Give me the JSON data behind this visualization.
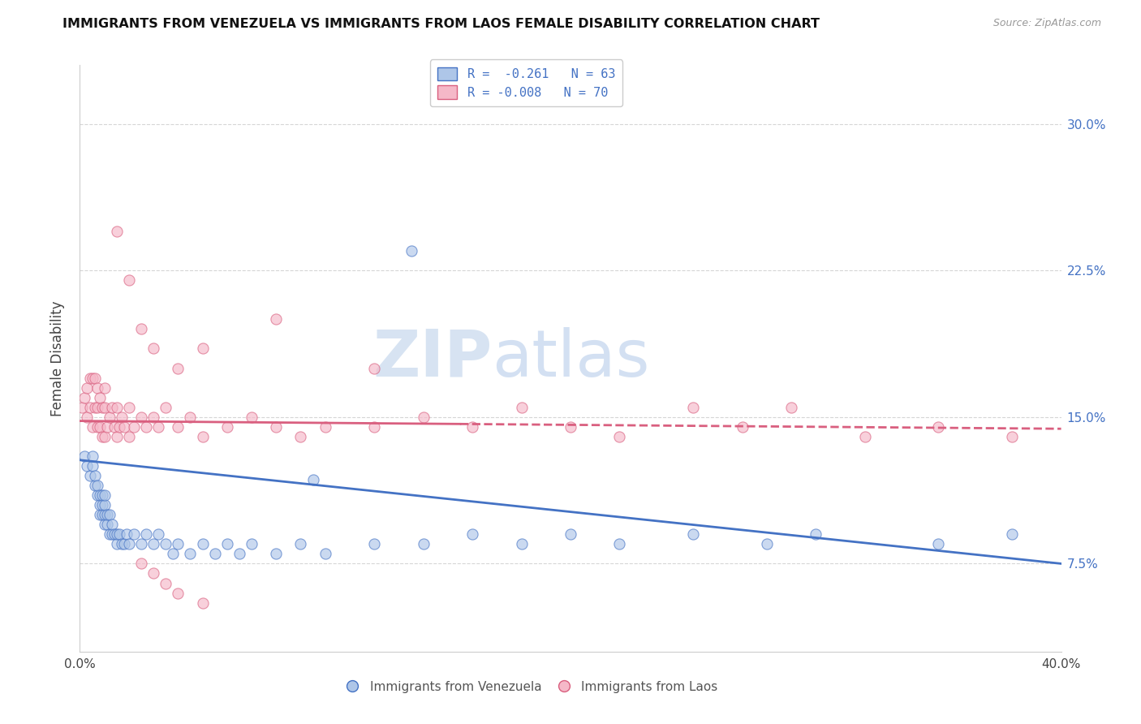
{
  "title": "IMMIGRANTS FROM VENEZUELA VS IMMIGRANTS FROM LAOS FEMALE DISABILITY CORRELATION CHART",
  "source": "Source: ZipAtlas.com",
  "ylabel": "Female Disability",
  "yticks": [
    "7.5%",
    "15.0%",
    "22.5%",
    "30.0%"
  ],
  "ytick_vals": [
    0.075,
    0.15,
    0.225,
    0.3
  ],
  "xlim": [
    0.0,
    0.4
  ],
  "ylim": [
    0.03,
    0.33
  ],
  "legend_r1": "R =  -0.261",
  "legend_n1": "N = 63",
  "legend_r2": "R = -0.008",
  "legend_n2": "N = 70",
  "watermark_zip": "ZIP",
  "watermark_atlas": "atlas",
  "color_blue": "#aec6e8",
  "color_pink": "#f5b8c8",
  "line_blue": "#4472c4",
  "line_pink": "#d95f7f",
  "venezuela_x": [
    0.002,
    0.003,
    0.004,
    0.005,
    0.005,
    0.006,
    0.006,
    0.007,
    0.007,
    0.008,
    0.008,
    0.008,
    0.009,
    0.009,
    0.009,
    0.01,
    0.01,
    0.01,
    0.01,
    0.011,
    0.011,
    0.012,
    0.012,
    0.013,
    0.013,
    0.014,
    0.015,
    0.015,
    0.016,
    0.017,
    0.018,
    0.019,
    0.02,
    0.022,
    0.025,
    0.027,
    0.03,
    0.032,
    0.035,
    0.038,
    0.04,
    0.045,
    0.05,
    0.055,
    0.06,
    0.065,
    0.07,
    0.08,
    0.09,
    0.1,
    0.12,
    0.14,
    0.16,
    0.18,
    0.2,
    0.22,
    0.25,
    0.28,
    0.3,
    0.35,
    0.38,
    0.135,
    0.095
  ],
  "venezuela_y": [
    0.13,
    0.125,
    0.12,
    0.125,
    0.13,
    0.115,
    0.12,
    0.11,
    0.115,
    0.1,
    0.105,
    0.11,
    0.1,
    0.105,
    0.11,
    0.095,
    0.1,
    0.105,
    0.11,
    0.095,
    0.1,
    0.09,
    0.1,
    0.09,
    0.095,
    0.09,
    0.085,
    0.09,
    0.09,
    0.085,
    0.085,
    0.09,
    0.085,
    0.09,
    0.085,
    0.09,
    0.085,
    0.09,
    0.085,
    0.08,
    0.085,
    0.08,
    0.085,
    0.08,
    0.085,
    0.08,
    0.085,
    0.08,
    0.085,
    0.08,
    0.085,
    0.085,
    0.09,
    0.085,
    0.09,
    0.085,
    0.09,
    0.085,
    0.09,
    0.085,
    0.09,
    0.235,
    0.118
  ],
  "laos_x": [
    0.001,
    0.002,
    0.003,
    0.003,
    0.004,
    0.004,
    0.005,
    0.005,
    0.006,
    0.006,
    0.007,
    0.007,
    0.007,
    0.008,
    0.008,
    0.009,
    0.009,
    0.01,
    0.01,
    0.01,
    0.011,
    0.012,
    0.013,
    0.014,
    0.015,
    0.015,
    0.016,
    0.017,
    0.018,
    0.02,
    0.02,
    0.022,
    0.025,
    0.027,
    0.03,
    0.032,
    0.035,
    0.04,
    0.045,
    0.05,
    0.06,
    0.07,
    0.08,
    0.09,
    0.1,
    0.12,
    0.14,
    0.16,
    0.18,
    0.2,
    0.22,
    0.25,
    0.27,
    0.29,
    0.32,
    0.35,
    0.38,
    0.05,
    0.08,
    0.12,
    0.015,
    0.02,
    0.025,
    0.03,
    0.04,
    0.025,
    0.03,
    0.035,
    0.04,
    0.05
  ],
  "laos_y": [
    0.155,
    0.16,
    0.15,
    0.165,
    0.155,
    0.17,
    0.145,
    0.17,
    0.155,
    0.17,
    0.145,
    0.155,
    0.165,
    0.145,
    0.16,
    0.14,
    0.155,
    0.14,
    0.155,
    0.165,
    0.145,
    0.15,
    0.155,
    0.145,
    0.14,
    0.155,
    0.145,
    0.15,
    0.145,
    0.14,
    0.155,
    0.145,
    0.15,
    0.145,
    0.15,
    0.145,
    0.155,
    0.145,
    0.15,
    0.14,
    0.145,
    0.15,
    0.145,
    0.14,
    0.145,
    0.145,
    0.15,
    0.145,
    0.155,
    0.145,
    0.14,
    0.155,
    0.145,
    0.155,
    0.14,
    0.145,
    0.14,
    0.185,
    0.2,
    0.175,
    0.245,
    0.22,
    0.195,
    0.185,
    0.175,
    0.075,
    0.07,
    0.065,
    0.06,
    0.055
  ]
}
